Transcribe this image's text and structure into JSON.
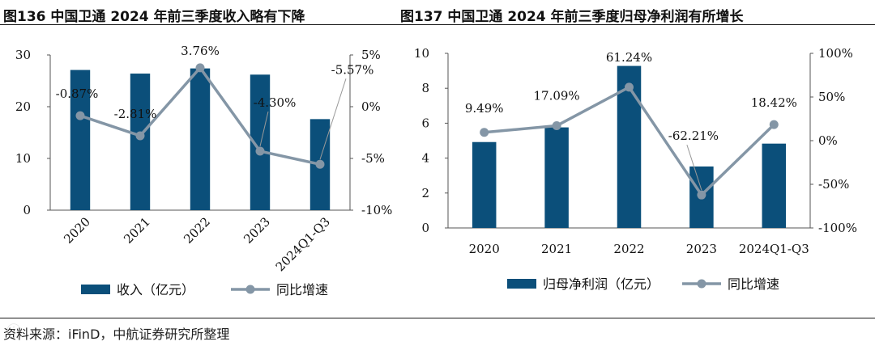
{
  "figures": {
    "left_title": "图136 中国卫通 2024 年前三季度收入略有下降",
    "right_title": "图137 中国卫通 2024 年前三季度归母净利润有所增长"
  },
  "source": "资料来源：iFinD，中航证券研究所整理",
  "colors": {
    "bar": "#0b4f7a",
    "line": "#8496a6",
    "axis": "#555555"
  },
  "chart_data": [
    {
      "type": "bar",
      "title": "图136 中国卫通 2024 年前三季度收入略有下降",
      "categories": [
        "2020",
        "2021",
        "2022",
        "2023",
        "2024Q1-Q3"
      ],
      "series": [
        {
          "name": "收入（亿元）",
          "kind": "bar",
          "axis": "left",
          "values": [
            27.1,
            26.4,
            27.4,
            26.2,
            17.6
          ]
        },
        {
          "name": "同比增速",
          "kind": "line",
          "axis": "right",
          "values": [
            -0.87,
            -2.81,
            3.76,
            -4.3,
            -5.57
          ]
        }
      ],
      "data_labels": [
        "-0.87%",
        "-2.81%",
        "3.76%",
        "-4.30%",
        "-5.57%"
      ],
      "ylim_left": [
        0,
        30
      ],
      "yticks_left": [
        "0",
        "10",
        "20",
        "30"
      ],
      "ylim_right": [
        -10,
        5
      ],
      "yticks_right": [
        "-10%",
        "-5%",
        "0%",
        "5%"
      ],
      "legend": [
        "收入（亿元）",
        "同比增速"
      ],
      "legend_position": "bottom"
    },
    {
      "type": "bar",
      "title": "图137 中国卫通 2024 年前三季度归母净利润有所增长",
      "categories": [
        "2020",
        "2021",
        "2022",
        "2023",
        "2024Q1-Q3"
      ],
      "series": [
        {
          "name": "归母净利润（亿元）",
          "kind": "bar",
          "axis": "left",
          "values": [
            4.92,
            5.76,
            9.28,
            3.52,
            4.83
          ]
        },
        {
          "name": "同比增速",
          "kind": "line",
          "axis": "right",
          "values": [
            9.49,
            17.09,
            61.24,
            -62.21,
            18.42
          ]
        }
      ],
      "data_labels": [
        "9.49%",
        "17.09%",
        "61.24%",
        "-62.21%",
        "18.42%"
      ],
      "ylim_left": [
        0,
        10
      ],
      "yticks_left": [
        "0",
        "2",
        "4",
        "6",
        "8",
        "10"
      ],
      "ylim_right": [
        -100,
        100
      ],
      "yticks_right": [
        "-100%",
        "-50%",
        "0%",
        "50%",
        "100%"
      ],
      "legend": [
        "归母净利润（亿元）",
        "同比增速"
      ],
      "legend_position": "bottom"
    }
  ]
}
